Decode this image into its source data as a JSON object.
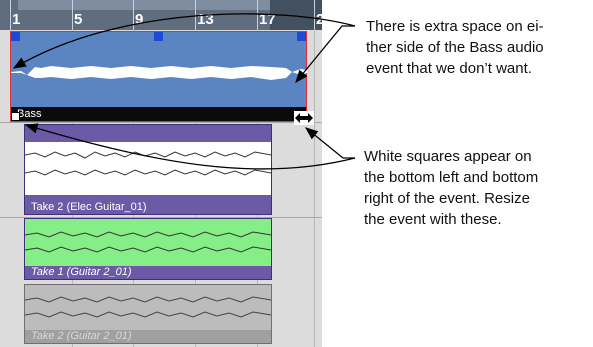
{
  "ruler": {
    "marks": [
      "1",
      "5",
      "9",
      "13",
      "17",
      "2"
    ]
  },
  "events": {
    "bass": {
      "label": "Bass"
    },
    "take2_elec": {
      "label": "Take 2 (Elec Guitar_01)"
    },
    "take1_guitar2": {
      "label": "Take 1 (Guitar 2_01)"
    },
    "take2_guitar2": {
      "label": "Take 2 (Guitar 2_01)"
    }
  },
  "callouts": {
    "extra_space": [
      "There is extra space on ei-",
      "ther side of the Bass audio",
      "event that we don’t want."
    ],
    "white_squares": [
      "White squares appear on",
      "the bottom left and bottom",
      "right of the event. Resize",
      "the event with these."
    ]
  },
  "colors": {
    "bass_event": "#5b84c2",
    "bass_border": "#e0303a",
    "elec_event": "#6b5aa6",
    "green_take": "#86ee86",
    "gray_take": "#bcbcbc"
  },
  "icons": {
    "resize_cursor": "double-arrow-resize-icon",
    "selection_handle": "blue-square-handle-icon"
  }
}
